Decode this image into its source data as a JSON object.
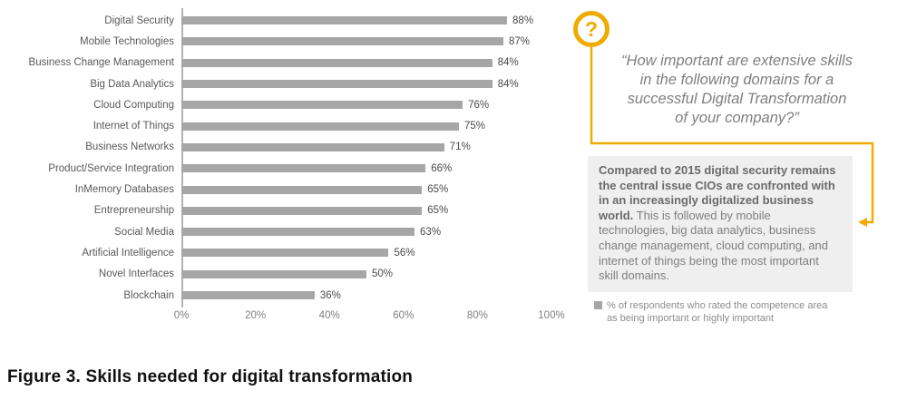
{
  "figure": {
    "caption": "Figure 3. Skills needed for digital transformation"
  },
  "quote": {
    "text": "“How important are extensive skills\nin the following domains for a\nsuccessful Digital Transformation\nof your company?”"
  },
  "insight": {
    "bold": "Compared to 2015 digital security remains the central issue CIOs are confronted with in an increasingly digitalized business world.",
    "regular": " This is followed by mobile technologies, big data analytics,  business change management, cloud computing, and internet of things being the most important skill domains."
  },
  "legend": {
    "text": "% of respondents who rated the competence area as being important or highly important"
  },
  "icons": {
    "question_mark": "?"
  },
  "colors": {
    "accent_gold": "#F0AB00",
    "bar_gray": "#A6A6A6",
    "box_background": "#EFEFEF"
  },
  "chart_data": {
    "type": "bar",
    "orientation": "horizontal",
    "title": "",
    "xlabel": "",
    "ylabel": "",
    "categories": [
      "Digital Security",
      "Mobile Technologies",
      "Business Change Management",
      "Big Data Analytics",
      "Cloud Computing",
      "Internet of Things",
      "Business Networks",
      "Product/Service Integration",
      "InMemory Databases",
      "Entrepreneurship",
      "Social Media",
      "Artificial Intelligence",
      "Novel Interfaces",
      "Blockchain"
    ],
    "values": [
      88,
      87,
      84,
      84,
      76,
      75,
      71,
      66,
      65,
      65,
      63,
      56,
      50,
      36
    ],
    "value_suffix": "%",
    "xlim": [
      0,
      100
    ],
    "xticks": [
      "0%",
      "20%",
      "40%",
      "60%",
      "80%",
      "100%"
    ],
    "xtick_values": [
      0,
      20,
      40,
      60,
      80,
      100
    ],
    "grid": false,
    "bar_color": "#A6A6A6",
    "legend_position": "bottom-right"
  }
}
